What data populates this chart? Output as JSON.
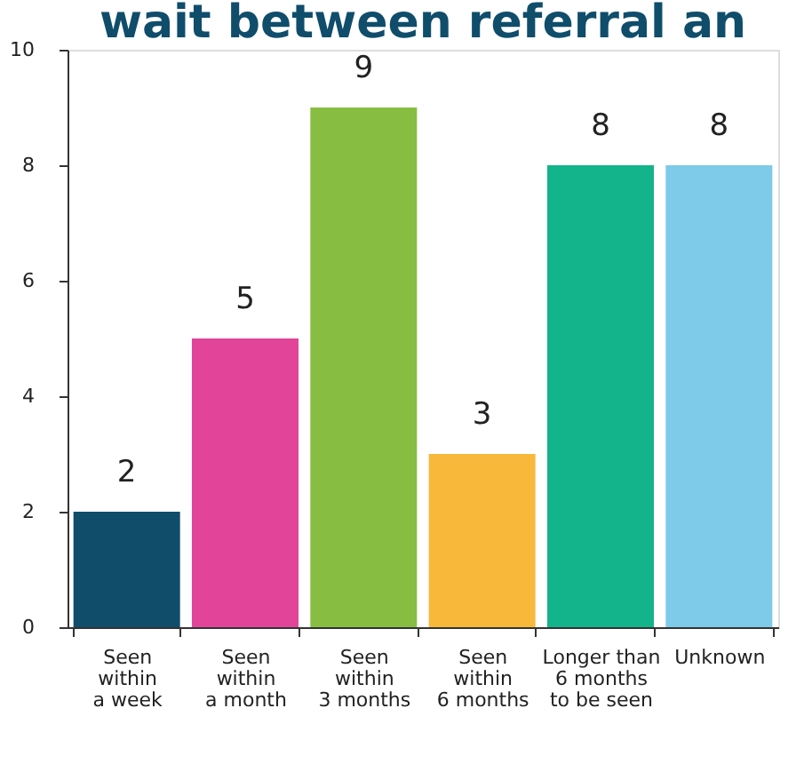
{
  "chart_data": {
    "type": "bar",
    "title": "wait between referral an",
    "categories": [
      "Seen\nwithin\na week",
      "Seen\nwithin\na month",
      "Seen\nwithin\n3 months",
      "Seen\nwithin\n6 months",
      "Longer than\n6 months\nto be seen",
      "Unknown"
    ],
    "values": [
      2,
      5,
      9,
      3,
      8,
      8
    ],
    "colors": [
      "#0f4d6b",
      "#e2449a",
      "#87bd41",
      "#f8b93b",
      "#13b38b",
      "#7dcbe9"
    ],
    "ylim": [
      0,
      10
    ],
    "yticks": [
      0,
      2,
      4,
      6,
      8,
      10
    ],
    "grid": false,
    "data_labels": true
  }
}
